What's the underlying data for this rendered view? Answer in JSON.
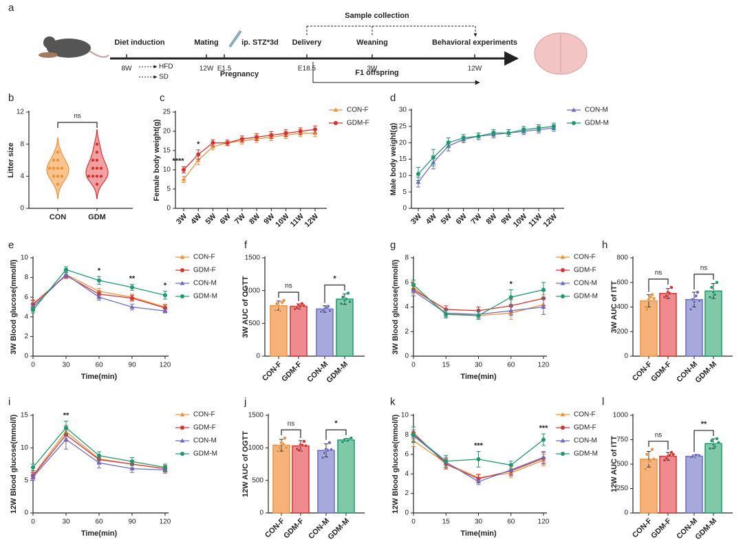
{
  "timeline": {
    "label": "a",
    "sample_collection": "Sample collection",
    "events": [
      {
        "title": "Diet induction",
        "time": "8W"
      },
      {
        "title": "Mating",
        "time": "12W"
      },
      {
        "title": "ip. STZ*3d",
        "time": "E1.5"
      },
      {
        "title": "Delivery",
        "time": "E18.5"
      },
      {
        "title": "Weaning",
        "time": "3W"
      },
      {
        "title": "Behavioral experiments",
        "time": "12W"
      }
    ],
    "diets": [
      "HFD",
      "SD"
    ],
    "pregnancy": "Pregnancy",
    "offspring": "F1 offspring"
  },
  "chart_data": [
    {
      "label": "b",
      "type": "violin",
      "ylabel": "Litter size",
      "categories": [
        "CON",
        "GDM"
      ],
      "colors": [
        "#f0913a",
        "#d9302c"
      ],
      "fills": [
        "#f9c48e",
        "#f2a1a3"
      ],
      "points": [
        [
          3,
          4,
          4,
          4,
          5,
          5,
          5,
          5,
          6,
          6,
          7
        ],
        [
          3,
          4,
          4,
          4,
          4,
          5,
          5,
          5,
          6,
          6,
          7,
          8
        ]
      ],
      "ylim": [
        0,
        12
      ],
      "yticks": [
        0,
        4,
        8,
        12
      ],
      "annotation": "ns"
    },
    {
      "label": "c",
      "type": "line",
      "ylabel": "Female body weight(g)",
      "categories": [
        "3W",
        "4W",
        "5W",
        "6W",
        "7W",
        "8W",
        "9W",
        "10W",
        "11W",
        "12W"
      ],
      "ylim": [
        0,
        25
      ],
      "yticks": [
        0,
        5,
        10,
        15,
        20,
        25
      ],
      "series": [
        {
          "name": "CON-F",
          "color": "#f0913a",
          "marker": "triangle",
          "values": [
            7.5,
            12.5,
            16,
            17,
            17.5,
            18,
            18.5,
            19,
            19.5,
            19.5
          ],
          "errors": [
            0.8,
            1.2,
            0.8,
            0.7,
            0.8,
            0.9,
            0.9,
            0.9,
            0.9,
            0.9
          ]
        },
        {
          "name": "GDM-F",
          "color": "#d9302c",
          "marker": "circle",
          "values": [
            10,
            14,
            17,
            17,
            18,
            18.5,
            19,
            19.5,
            20,
            20.5
          ],
          "errors": [
            0.8,
            1.2,
            0.8,
            0.7,
            0.8,
            0.9,
            0.9,
            0.9,
            0.9,
            0.9
          ]
        }
      ],
      "significance": [
        "****",
        "*",
        null,
        null,
        null,
        null,
        null,
        null,
        null,
        null
      ]
    },
    {
      "label": "d",
      "type": "line",
      "ylabel": "Male body weight(g)",
      "categories": [
        "3W",
        "4W",
        "5W",
        "6W",
        "7W",
        "8W",
        "9W",
        "10W",
        "11W",
        "12W"
      ],
      "ylim": [
        0,
        30
      ],
      "yticks": [
        0,
        5,
        10,
        15,
        20,
        25,
        30
      ],
      "series": [
        {
          "name": "CON-M",
          "color": "#6a6ac4",
          "marker": "triangle",
          "values": [
            8,
            14,
            19,
            21,
            22,
            22.5,
            23,
            23.5,
            24,
            24.5
          ],
          "errors": [
            1.5,
            2,
            1.5,
            1,
            1,
            1,
            1,
            1,
            1,
            1
          ]
        },
        {
          "name": "GDM-M",
          "color": "#1a9a6c",
          "marker": "circle",
          "values": [
            10.5,
            15.5,
            20,
            21.5,
            22,
            23,
            23,
            24,
            24.5,
            25
          ],
          "errors": [
            2,
            2.5,
            1.5,
            1,
            1,
            1,
            1,
            1,
            1,
            1
          ]
        }
      ],
      "significance": [
        null,
        null,
        null,
        null,
        null,
        null,
        null,
        null,
        null,
        null
      ]
    },
    {
      "label": "e",
      "type": "line",
      "xlabel": "Time(min)",
      "ylabel": "3W Blood glucose(mmol/l)",
      "x": [
        0,
        30,
        60,
        90,
        120
      ],
      "xlim": [
        0,
        120
      ],
      "xticks": [
        0,
        30,
        60,
        90,
        120
      ],
      "ylim": [
        0,
        10
      ],
      "yticks": [
        0,
        2,
        4,
        6,
        8,
        10
      ],
      "series": [
        {
          "name": "CON-F",
          "color": "#f0913a",
          "marker": "triangle",
          "values": [
            5.2,
            8.3,
            6.6,
            6.0,
            5.0
          ],
          "errors": [
            0.4,
            0.3,
            0.3,
            0.3,
            0.3
          ]
        },
        {
          "name": "GDM-F",
          "color": "#d9302c",
          "marker": "circle",
          "values": [
            5.3,
            8.2,
            6.3,
            5.9,
            4.9
          ],
          "errors": [
            0.4,
            0.3,
            0.3,
            0.3,
            0.3
          ]
        },
        {
          "name": "CON-M",
          "color": "#6a6ac4",
          "marker": "triangle",
          "values": [
            5.0,
            8.3,
            6.0,
            5.0,
            4.6
          ],
          "errors": [
            0.4,
            0.3,
            0.3,
            0.3,
            0.2
          ]
        },
        {
          "name": "GDM-M",
          "color": "#1a9a6c",
          "marker": "circle",
          "values": [
            4.7,
            8.8,
            7.7,
            7.0,
            6.2
          ],
          "errors": [
            0.3,
            0.3,
            0.4,
            0.3,
            0.4
          ]
        }
      ],
      "significance": [
        null,
        null,
        "*",
        "**",
        "*"
      ]
    },
    {
      "label": "f",
      "type": "bar",
      "ylabel": "3W AUC of OGTT",
      "categories": [
        "CON-F",
        "GDM-F",
        "CON-M",
        "GDM-M"
      ],
      "values": [
        770,
        760,
        720,
        870
      ],
      "errors": [
        70,
        40,
        50,
        80
      ],
      "points": [
        [
          700,
          760,
          820,
          800,
          690,
          850
        ],
        [
          720,
          780,
          800,
          740,
          760,
          770
        ],
        [
          680,
          720,
          760,
          700,
          740,
          690
        ],
        [
          800,
          850,
          960,
          900,
          870,
          830
        ]
      ],
      "colors": [
        "#f0913a",
        "#d9302c",
        "#6a6ac4",
        "#1a9a6c"
      ],
      "fills": [
        "#f7b27a",
        "#ef8b8e",
        "#a7a9dc",
        "#7fc9a8"
      ],
      "ylim": [
        0,
        1500
      ],
      "yticks": [
        0,
        500,
        1000,
        1500
      ],
      "annotations": [
        "ns",
        "*"
      ]
    },
    {
      "label": "g",
      "type": "line",
      "xlabel": "Time(min)",
      "ylabel": "3W Blood glucose(mmol/l)",
      "categories": [
        "0",
        "15",
        "30",
        "60",
        "120"
      ],
      "ylim": [
        0,
        8
      ],
      "yticks": [
        0,
        2,
        4,
        6,
        8
      ],
      "series": [
        {
          "name": "CON-F",
          "color": "#f0913a",
          "marker": "triangle",
          "values": [
            5.6,
            3.5,
            3.3,
            3.5,
            4.2
          ],
          "errors": [
            0.5,
            0.3,
            0.3,
            0.5,
            0.8
          ]
        },
        {
          "name": "GDM-F",
          "color": "#d9302c",
          "marker": "circle",
          "values": [
            5.4,
            3.8,
            3.7,
            4.1,
            4.7
          ],
          "errors": [
            0.5,
            0.3,
            0.3,
            0.5,
            0.6
          ]
        },
        {
          "name": "CON-M",
          "color": "#6a6ac4",
          "marker": "triangle",
          "values": [
            5.3,
            3.5,
            3.4,
            3.7,
            4.0
          ],
          "errors": [
            0.4,
            0.3,
            0.3,
            0.4,
            0.6
          ]
        },
        {
          "name": "GDM-M",
          "color": "#1a9a6c",
          "marker": "circle",
          "values": [
            5.8,
            3.4,
            3.3,
            4.8,
            5.4
          ],
          "errors": [
            0.4,
            0.3,
            0.3,
            0.6,
            0.6
          ]
        }
      ],
      "significance": [
        null,
        null,
        null,
        "*",
        null
      ]
    },
    {
      "label": "h",
      "type": "bar",
      "ylabel": "3W AUC of ITT",
      "categories": [
        "CON-F",
        "GDM-F",
        "CON-M",
        "GDM-M"
      ],
      "values": [
        450,
        510,
        460,
        530
      ],
      "errors": [
        50,
        40,
        60,
        60
      ],
      "points": [
        [
          400,
          460,
          500,
          380,
          480,
          470
        ],
        [
          480,
          520,
          560,
          490,
          510
        ],
        [
          380,
          440,
          520,
          460,
          490,
          450
        ],
        [
          480,
          520,
          600,
          560,
          500
        ]
      ],
      "colors": [
        "#f0913a",
        "#d9302c",
        "#6a6ac4",
        "#1a9a6c"
      ],
      "fills": [
        "#f7b27a",
        "#ef8b8e",
        "#a7a9dc",
        "#7fc9a8"
      ],
      "ylim": [
        0,
        800
      ],
      "yticks": [
        0,
        200,
        400,
        600,
        800
      ],
      "annotations": [
        "ns",
        "ns"
      ]
    },
    {
      "label": "i",
      "type": "line",
      "xlabel": "Time(min)",
      "ylabel": "12W Blood glucose(mmol/l)",
      "x": [
        0,
        30,
        60,
        90,
        120
      ],
      "xlim": [
        0,
        120
      ],
      "xticks": [
        0,
        30,
        60,
        90,
        120
      ],
      "ylim": [
        0,
        15
      ],
      "yticks": [
        0,
        5,
        10,
        15
      ],
      "series": [
        {
          "name": "CON-F",
          "color": "#f0913a",
          "marker": "triangle",
          "values": [
            5.8,
            12.5,
            8.3,
            7.5,
            6.8
          ],
          "errors": [
            0.5,
            1.0,
            0.6,
            0.6,
            0.5
          ]
        },
        {
          "name": "GDM-F",
          "color": "#d9302c",
          "marker": "circle",
          "values": [
            5.7,
            12.0,
            8.2,
            7.5,
            6.8
          ],
          "errors": [
            0.5,
            1.0,
            0.6,
            0.6,
            0.5
          ]
        },
        {
          "name": "CON-M",
          "color": "#6a6ac4",
          "marker": "triangle",
          "values": [
            5.5,
            11.3,
            7.7,
            6.8,
            6.6
          ],
          "errors": [
            0.5,
            1.5,
            0.8,
            0.6,
            0.5
          ]
        },
        {
          "name": "GDM-M",
          "color": "#1a9a6c",
          "marker": "circle",
          "values": [
            7.0,
            13.1,
            8.8,
            7.9,
            7.0
          ],
          "errors": [
            0.5,
            1.0,
            0.6,
            0.6,
            0.5
          ]
        }
      ],
      "significance": [
        null,
        "**",
        null,
        null,
        null
      ]
    },
    {
      "label": "j",
      "type": "bar",
      "ylabel": "12W AUC of OGTT",
      "categories": [
        "CON-F",
        "GDM-F",
        "CON-M",
        "GDM-M"
      ],
      "values": [
        1040,
        1030,
        960,
        1120
      ],
      "errors": [
        90,
        80,
        100,
        25
      ],
      "points": [
        [
          950,
          1080,
          1150,
          1000,
          1060,
          1000
        ],
        [
          980,
          1050,
          1100,
          960,
          1040,
          1030
        ],
        [
          850,
          980,
          1080,
          920,
          960,
          970
        ],
        [
          1090,
          1110,
          1130,
          1120,
          1110,
          1150
        ]
      ],
      "colors": [
        "#f0913a",
        "#d9302c",
        "#6a6ac4",
        "#1a9a6c"
      ],
      "fills": [
        "#f7b27a",
        "#ef8b8e",
        "#a7a9dc",
        "#7fc9a8"
      ],
      "ylim": [
        0,
        1500
      ],
      "yticks": [
        0,
        500,
        1000,
        1500
      ],
      "annotations": [
        "ns",
        "*"
      ]
    },
    {
      "label": "k",
      "type": "line",
      "xlabel": "Time(min)",
      "ylabel": "12W Blood glucose(mmol/l)",
      "categories": [
        "0",
        "15",
        "30",
        "60",
        "120"
      ],
      "ylim": [
        0,
        10
      ],
      "yticks": [
        0,
        2,
        4,
        6,
        8,
        10
      ],
      "series": [
        {
          "name": "CON-F",
          "color": "#f0913a",
          "marker": "triangle",
          "values": [
            7.4,
            5.1,
            3.6,
            4.1,
            5.4
          ],
          "errors": [
            0.6,
            0.5,
            0.4,
            0.5,
            0.6
          ]
        },
        {
          "name": "GDM-F",
          "color": "#d9302c",
          "marker": "circle",
          "values": [
            8.2,
            5.0,
            3.5,
            4.3,
            5.6
          ],
          "errors": [
            0.6,
            0.5,
            0.4,
            0.5,
            0.6
          ]
        },
        {
          "name": "CON-M",
          "color": "#6a6ac4",
          "marker": "triangle",
          "values": [
            7.9,
            5.2,
            3.2,
            4.4,
            5.7
          ],
          "errors": [
            0.6,
            0.5,
            0.3,
            0.5,
            0.6
          ]
        },
        {
          "name": "GDM-M",
          "color": "#1a9a6c",
          "marker": "circle",
          "values": [
            8.0,
            5.3,
            5.5,
            4.9,
            7.5
          ],
          "errors": [
            0.8,
            0.6,
            0.8,
            0.4,
            0.6
          ]
        }
      ],
      "significance": [
        null,
        null,
        "***",
        null,
        "***"
      ]
    },
    {
      "label": "l",
      "type": "bar",
      "ylabel": "12W AUC of ITT",
      "categories": [
        "CON-F",
        "GDM-F",
        "CON-M",
        "GDM-M"
      ],
      "values": [
        550,
        580,
        580,
        710
      ],
      "errors": [
        80,
        40,
        15,
        50
      ],
      "points": [
        [
          450,
          520,
          650,
          600,
          530,
          550
        ],
        [
          540,
          580,
          620,
          560,
          590,
          600
        ],
        [
          570,
          580,
          590,
          575,
          590,
          585
        ],
        [
          660,
          700,
          760,
          740,
          680,
          720
        ]
      ],
      "colors": [
        "#f0913a",
        "#d9302c",
        "#6a6ac4",
        "#1a9a6c"
      ],
      "fills": [
        "#f7b27a",
        "#ef8b8e",
        "#a7a9dc",
        "#7fc9a8"
      ],
      "ylim": [
        0,
        1000
      ],
      "yticks": [
        0,
        250,
        500,
        750,
        1000
      ],
      "annotations": [
        "ns",
        "**"
      ]
    }
  ]
}
